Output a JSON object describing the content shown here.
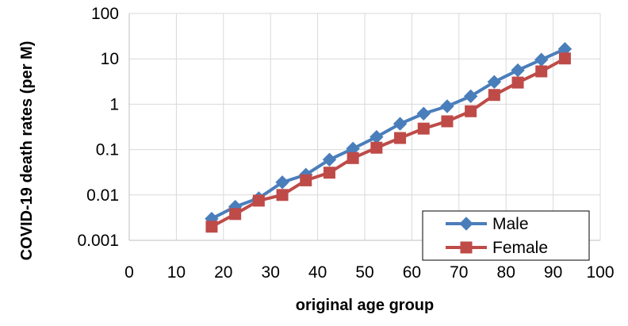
{
  "chart_data": {
    "type": "line",
    "title": "",
    "xlabel": "original age group",
    "ylabel": "COVID-19 death rates (per M)",
    "xlim": [
      0,
      100
    ],
    "ylim": [
      0.001,
      100
    ],
    "y_scale": "log",
    "grid": true,
    "legend_position": "bottom-right",
    "x_ticks": [
      0,
      10,
      20,
      30,
      40,
      50,
      60,
      70,
      80,
      90,
      100
    ],
    "x_tick_labels": [
      "0",
      "10",
      "20",
      "30",
      "40",
      "50",
      "60",
      "70",
      "80",
      "90",
      "100"
    ],
    "y_ticks": [
      0.001,
      0.01,
      0.1,
      1,
      10,
      100
    ],
    "y_tick_labels": [
      "0.001",
      "0.01",
      "0.1",
      "1",
      "10",
      "100"
    ],
    "x": [
      17.5,
      22.5,
      27.5,
      32.5,
      37.5,
      42.5,
      47.5,
      52.5,
      57.5,
      62.5,
      67.5,
      72.5,
      77.5,
      82.5,
      87.5,
      92.5
    ],
    "series": [
      {
        "name": "Male",
        "color": "#4A7EBB",
        "marker": "diamond",
        "values": [
          0.003,
          0.0055,
          0.0085,
          0.019,
          0.028,
          0.06,
          0.105,
          0.19,
          0.37,
          0.62,
          0.9,
          1.5,
          3.1,
          5.6,
          9.6,
          16.5
        ]
      },
      {
        "name": "Female",
        "color": "#BE4B48",
        "marker": "square",
        "values": [
          0.002,
          0.0038,
          0.0075,
          0.01,
          0.021,
          0.031,
          0.065,
          0.11,
          0.18,
          0.29,
          0.42,
          0.7,
          1.6,
          3.0,
          5.3,
          10.2
        ]
      }
    ]
  }
}
